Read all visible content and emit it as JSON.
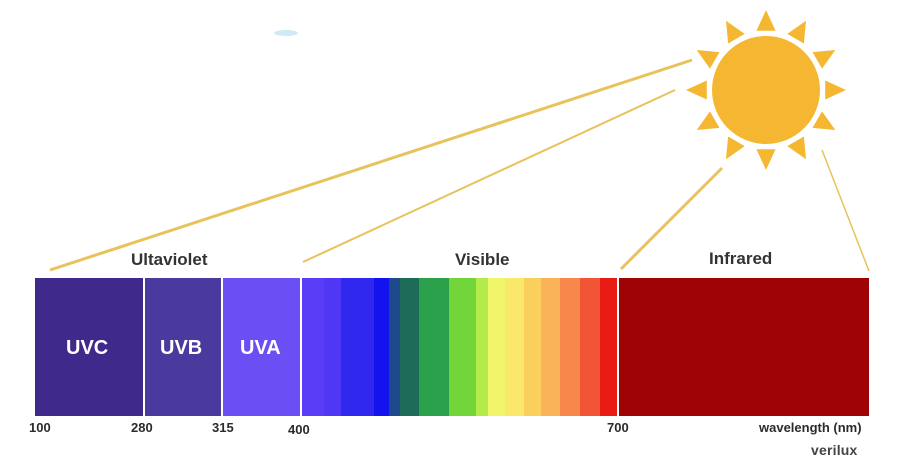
{
  "sections": {
    "ultraviolet": "Ultaviolet",
    "visible": "Visible",
    "infrared": "Infrared"
  },
  "bands": {
    "uvc": "UVC",
    "uvb": "UVB",
    "uva": "UVA"
  },
  "ticks": [
    "100",
    "280",
    "315",
    "400",
    "700"
  ],
  "axis_label": "wavelength (nm)",
  "brand": "verilux",
  "colors": {
    "uvc": "#3f2a8c",
    "uvb": "#4b3a9e",
    "uva": "#6b4ff5",
    "infrared": "#9e0406",
    "sun": "#f5b731",
    "ray": "#e8c25a",
    "visible_gradient": [
      "#5a3df7",
      "#4f37f5",
      "#3128f0",
      "#1512f0",
      "#1e4a8c",
      "#1f6b5a",
      "#2aa14a",
      "#72d63a",
      "#b3ec4a",
      "#f0f56a",
      "#f9e86c",
      "#fbcf5c",
      "#fbb35a",
      "#f7874a",
      "#f25536",
      "#e81b14",
      "#d80d0d"
    ]
  },
  "icons": {
    "sun": "sun-icon"
  }
}
